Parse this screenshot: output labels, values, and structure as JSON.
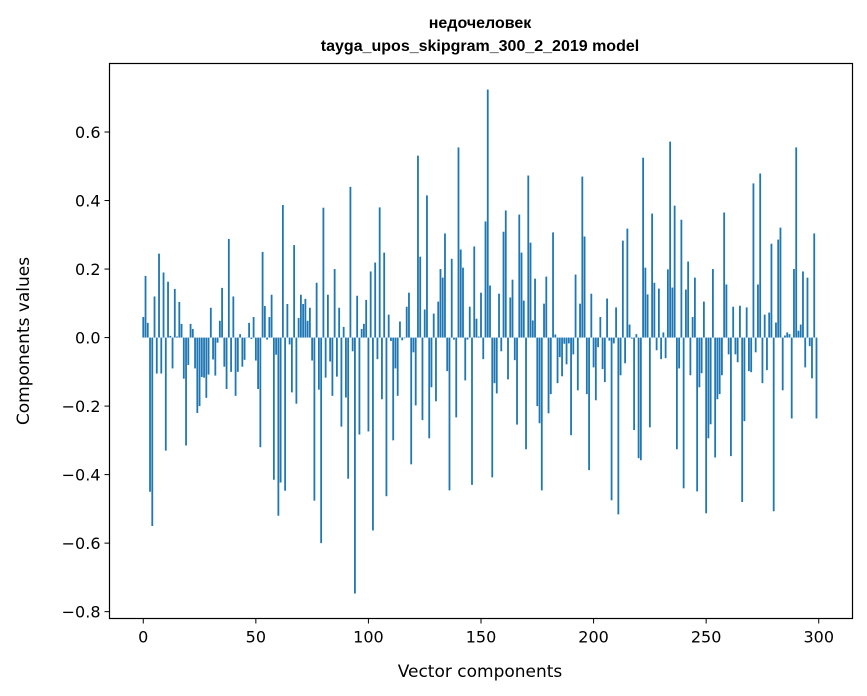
{
  "chart_data": {
    "type": "bar",
    "title": "недочеловек",
    "subtitle": "tayga_upos_skipgram_300_2_2019 model",
    "xlabel": "Vector components",
    "ylabel": "Components values",
    "xlim": [
      -15,
      315
    ],
    "ylim": [
      -0.82,
      0.8
    ],
    "xticks": [
      0,
      50,
      100,
      150,
      200,
      250,
      300
    ],
    "xtick_labels": [
      "0",
      "50",
      "100",
      "150",
      "200",
      "250",
      "300"
    ],
    "yticks": [
      -0.8,
      -0.6,
      -0.4,
      -0.2,
      0.0,
      0.2,
      0.4,
      0.6
    ],
    "ytick_labels": [
      "−0.8",
      "−0.6",
      "−0.4",
      "−0.2",
      "0.0",
      "0.2",
      "0.4",
      "0.6"
    ],
    "grid": false,
    "bar_color": "#1f77b4",
    "values": [
      0.06,
      0.18,
      0.043,
      -0.45,
      -0.55,
      0.12,
      -0.105,
      0.245,
      -0.105,
      0.19,
      -0.33,
      0.163,
      0.005,
      -0.09,
      0.142,
      0.003,
      0.104,
      0.04,
      -0.12,
      -0.315,
      -0.08,
      0.04,
      0.025,
      -0.09,
      -0.22,
      -0.2,
      -0.115,
      -0.117,
      -0.176,
      -0.108,
      0.087,
      -0.064,
      -0.111,
      -0.015,
      0.049,
      0.145,
      -0.085,
      -0.15,
      0.288,
      -0.1,
      0.12,
      -0.17,
      -0.1,
      0.01,
      -0.085,
      -0.065,
      0.0,
      0.043,
      -0.004,
      0.06,
      -0.067,
      -0.15,
      -0.32,
      0.25,
      0.092,
      -0.006,
      0.06,
      0.125,
      -0.415,
      -0.05,
      -0.52,
      -0.423,
      0.387,
      -0.447,
      0.098,
      -0.02,
      -0.16,
      0.27,
      -0.193,
      0.057,
      0.125,
      0.098,
      0.113,
      0.049,
      0.087,
      -0.067,
      -0.476,
      0.16,
      -0.152,
      -0.6,
      0.379,
      -0.117,
      0.125,
      -0.07,
      -0.17,
      0.2,
      -0.114,
      0.087,
      -0.26,
      0.031,
      -0.175,
      -0.412,
      0.44,
      -0.04,
      -0.747,
      0.122,
      -0.283,
      0.025,
      0.04,
      0.11,
      -0.274,
      0.193,
      -0.563,
      0.219,
      -0.063,
      0.38,
      -0.18,
      0.248,
      -0.463,
      0.067,
      -0.01,
      -0.3,
      -0.09,
      -0.17,
      0.047,
      -0.008,
      -0.002,
      0.09,
      0.131,
      -0.37,
      -0.043,
      -0.198,
      0.531,
      0.236,
      -0.241,
      0.082,
      0.415,
      -0.294,
      -0.145,
      0.07,
      -0.186,
      0.105,
      0.2,
      0.175,
      0.304,
      -0.098,
      -0.446,
      0.23,
      -0.006,
      -0.233,
      0.555,
      0.257,
      0.204,
      -0.125,
      -0.006,
      0.09,
      -0.43,
      0.266,
      0.055,
      0.003,
      0.131,
      -0.063,
      0.339,
      0.724,
      0.152,
      -0.408,
      -0.133,
      -0.163,
      0.128,
      -0.04,
      0.309,
      0.371,
      -0.122,
      0.117,
      0.169,
      -0.066,
      -0.254,
      0.359,
      0.248,
      0.108,
      -0.326,
      0.473,
      0.277,
      0.05,
      0.172,
      -0.2,
      -0.25,
      -0.446,
      0.099,
      0.178,
      -0.221,
      -0.165,
      0.307,
      0.009,
      -0.133,
      -0.057,
      -0.113,
      -0.018,
      -0.078,
      -0.017,
      -0.285,
      -0.049,
      0.184,
      -0.154,
      0.099,
      0.47,
      0.295,
      -0.165,
      -0.387,
      0.128,
      -0.087,
      -0.183,
      -0.028,
      0.06,
      -0.092,
      -0.13,
      0.114,
      -0.009,
      -0.475,
      -0.017,
      0.088,
      -0.516,
      -0.11,
      0.283,
      -0.075,
      0.318,
      0.038,
      -0.003,
      -0.27,
      0.01,
      -0.352,
      -0.358,
      0.525,
      0.204,
      0.126,
      -0.262,
      0.362,
      0.16,
      -0.037,
      0.143,
      -0.063,
      0.015,
      -0.06,
      0.199,
      0.572,
      0.146,
      0.385,
      -0.326,
      -0.09,
      0.344,
      -0.44,
      0.14,
      0.222,
      -0.11,
      0.06,
      0.175,
      -0.449,
      -0.145,
      -0.104,
      0.105,
      -0.513,
      -0.294,
      -0.253,
      0.2,
      -0.35,
      -0.18,
      -0.165,
      -0.11,
      0.365,
      0.155,
      -0.049,
      -0.346,
      0.09,
      -0.049,
      -0.072,
      0.093,
      -0.48,
      -0.244,
      0.088,
      -0.098,
      -0.101,
      0.45,
      -0.043,
      0.155,
      0.479,
      -0.133,
      0.067,
      -0.095,
      0.073,
      0.274,
      -0.507,
      0.044,
      0.286,
      0.321,
      -0.154,
      0.006,
      0.015,
      0.01,
      -0.236,
      0.2,
      0.555,
      0.02,
      0.038,
      0.193,
      -0.087,
      0.175,
      -0.025,
      -0.119,
      0.304,
      -0.236
    ]
  }
}
